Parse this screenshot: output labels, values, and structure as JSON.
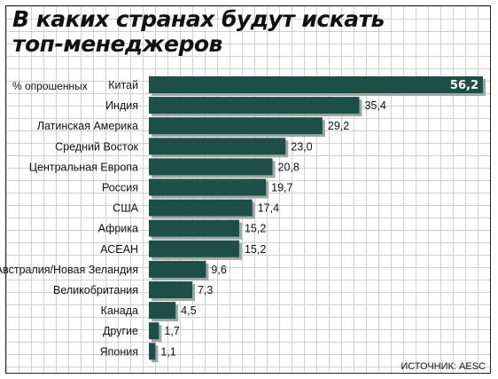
{
  "chart_data": {
    "type": "bar",
    "orientation": "horizontal",
    "title_lines": [
      "В каких странах будут искать",
      "топ-менеджеров"
    ],
    "ylabel": "% опрошенных",
    "source": "ИСТОЧНИК: AESC",
    "categories": [
      "Китай",
      "Индия",
      "Латинская Америка",
      "Средний Восток",
      "Центральная Европа",
      "Россия",
      "США",
      "Африка",
      "АСЕАН",
      "Австралия/Новая Зеландия",
      "Великобритания",
      "Канада",
      "Другие",
      "Япония"
    ],
    "values": [
      56.2,
      35.4,
      29.2,
      23.0,
      20.8,
      19.7,
      17.4,
      15.2,
      15.2,
      9.6,
      7.3,
      4.5,
      1.7,
      1.1
    ],
    "value_labels": [
      "56,2",
      "35,4",
      "29,2",
      "23,0",
      "20,8",
      "19,7",
      "17,4",
      "15,2",
      "15,2",
      "9,6",
      "7,3",
      "4,5",
      "1,7",
      "1,1"
    ],
    "xlim": [
      0,
      56.2
    ],
    "grid": true,
    "colors": {
      "bar": "#1e4e48",
      "bar_shadow": "#9aa9a6"
    }
  }
}
